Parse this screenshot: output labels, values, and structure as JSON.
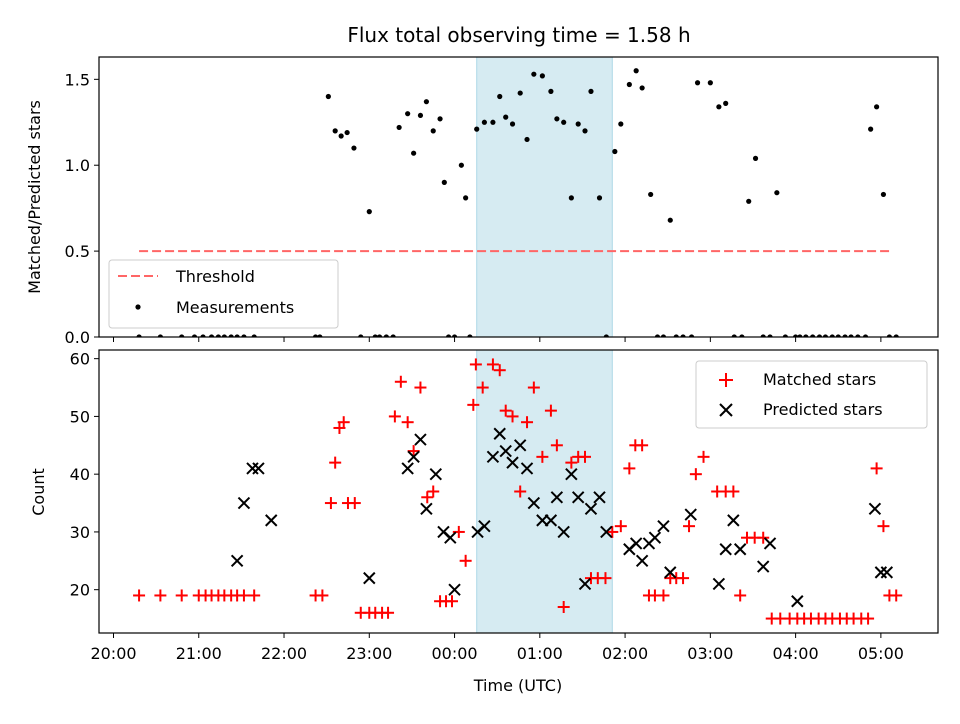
{
  "chart_data": {
    "type": "scatter",
    "title": "Flux total observing time = 1.58 h",
    "xlabel": "Time (UTC)",
    "x_unit": "hours since 00:00 UTC",
    "x_ticks": [
      {
        "value": -4,
        "label": "20:00"
      },
      {
        "value": -3,
        "label": "21:00"
      },
      {
        "value": -2,
        "label": "22:00"
      },
      {
        "value": -1,
        "label": "23:00"
      },
      {
        "value": 0,
        "label": "00:00"
      },
      {
        "value": 1,
        "label": "01:00"
      },
      {
        "value": 2,
        "label": "02:00"
      },
      {
        "value": 3,
        "label": "03:00"
      },
      {
        "value": 4,
        "label": "04:00"
      },
      {
        "value": 5,
        "label": "05:00"
      }
    ],
    "xlim": [
      -4.17,
      5.67
    ],
    "highlight_span": {
      "x0": 0.26,
      "x1": 1.85,
      "color": "#add8e6"
    },
    "top_panel": {
      "ylabel": "Matched/Predicted stars",
      "ylim": [
        0,
        1.63
      ],
      "y_ticks": [
        "0.0",
        "0.5",
        "1.0",
        "1.5"
      ],
      "threshold": {
        "value": 0.5,
        "x0": -3.7,
        "x1": 5.1,
        "name": "Threshold",
        "color": "#ff6666"
      },
      "measurements": {
        "name": "Measurements",
        "color": "#000000",
        "x": [
          -3.7,
          -3.45,
          -3.2,
          -3.05,
          -2.95,
          -2.85,
          -2.77,
          -2.7,
          -2.62,
          -2.55,
          -2.47,
          -2.35,
          -1.63,
          -1.58,
          -1.48,
          -1.4,
          -1.33,
          -1.26,
          -1.18,
          -1.1,
          -1.0,
          -0.93,
          -0.88,
          -0.8,
          -0.72,
          -0.65,
          -0.55,
          -0.48,
          -0.4,
          -0.33,
          -0.25,
          -0.17,
          -0.12,
          -0.07,
          0.0,
          0.08,
          0.13,
          0.18,
          0.26,
          0.35,
          0.45,
          0.53,
          0.6,
          0.68,
          0.77,
          0.85,
          0.93,
          1.03,
          1.13,
          1.2,
          1.28,
          1.37,
          1.45,
          1.53,
          1.6,
          1.7,
          1.78,
          1.88,
          1.95,
          2.05,
          2.13,
          2.2,
          2.3,
          2.38,
          2.45,
          2.53,
          2.6,
          2.68,
          2.78,
          2.85,
          3.0,
          3.1,
          3.18,
          3.28,
          3.37,
          3.45,
          3.53,
          3.62,
          3.7,
          3.78,
          3.88,
          4.0,
          4.05,
          4.12,
          4.2,
          4.28,
          4.35,
          4.43,
          4.5,
          4.58,
          4.65,
          4.73,
          4.82,
          4.88,
          4.95,
          5.03,
          5.1,
          5.18
        ],
        "y": [
          0,
          0,
          0,
          0,
          0,
          0,
          0,
          0,
          0,
          0,
          0,
          0,
          0,
          0,
          1.4,
          1.2,
          1.17,
          1.19,
          1.1,
          0,
          0.73,
          0,
          0,
          0,
          0,
          1.22,
          1.3,
          1.07,
          1.29,
          1.37,
          1.2,
          1.27,
          0.9,
          0,
          0,
          1.0,
          0.81,
          0,
          1.21,
          1.25,
          1.25,
          1.4,
          1.28,
          1.24,
          1.42,
          1.15,
          1.53,
          1.52,
          1.43,
          1.27,
          1.25,
          0.81,
          1.24,
          1.2,
          1.43,
          0.81,
          0,
          1.08,
          1.24,
          1.47,
          1.55,
          1.45,
          0.83,
          0,
          0,
          0.68,
          0,
          0,
          0,
          1.48,
          1.48,
          1.34,
          1.36,
          0,
          0,
          0.79,
          1.04,
          0,
          0,
          0.84,
          0,
          0,
          0,
          0,
          0,
          0,
          0,
          0,
          0,
          0,
          0,
          0,
          0,
          1.21,
          1.34,
          0.83,
          0,
          0
        ]
      }
    },
    "bottom_panel": {
      "ylabel": "Count",
      "ylim": [
        12.5,
        61.5
      ],
      "y_ticks": [
        "20",
        "30",
        "40",
        "50",
        "60"
      ],
      "series": [
        {
          "name": "Matched stars",
          "marker": "+",
          "color": "#ff0000",
          "x": [
            -3.7,
            -3.45,
            -3.2,
            -3.0,
            -2.92,
            -2.85,
            -2.77,
            -2.7,
            -2.62,
            -2.55,
            -2.47,
            -2.35,
            -1.63,
            -1.55,
            -1.45,
            -1.4,
            -1.35,
            -1.3,
            -1.25,
            -1.17,
            -1.1,
            -1.0,
            -0.93,
            -0.85,
            -0.78,
            -0.7,
            -0.63,
            -0.55,
            -0.48,
            -0.4,
            -0.32,
            -0.25,
            -0.17,
            -0.1,
            -0.03,
            0.05,
            0.13,
            0.22,
            0.25,
            0.33,
            0.45,
            0.53,
            0.6,
            0.68,
            0.77,
            0.85,
            0.93,
            1.03,
            1.13,
            1.2,
            1.28,
            1.37,
            1.45,
            1.53,
            1.6,
            1.68,
            1.77,
            1.85,
            1.95,
            2.05,
            2.12,
            2.2,
            2.28,
            2.35,
            2.45,
            2.53,
            2.6,
            2.68,
            2.75,
            2.83,
            2.92,
            3.08,
            3.18,
            3.27,
            3.35,
            3.43,
            3.52,
            3.62,
            3.72,
            3.82,
            3.93,
            4.02,
            4.1,
            4.18,
            4.27,
            4.35,
            4.43,
            4.52,
            4.6,
            4.68,
            4.77,
            4.85,
            4.95,
            5.03,
            5.1,
            5.18
          ],
          "y": [
            19,
            19,
            19,
            19,
            19,
            19,
            19,
            19,
            19,
            19,
            19,
            19,
            19,
            19,
            35,
            42,
            48,
            49,
            35,
            35,
            16,
            16,
            16,
            16,
            16,
            50,
            56,
            49,
            44,
            55,
            36,
            37,
            18,
            18,
            18,
            30,
            25,
            52,
            59,
            55,
            59,
            58,
            51,
            50,
            37,
            49,
            55,
            43,
            51,
            45,
            17,
            42,
            43,
            43,
            22,
            22,
            22,
            30,
            31,
            41,
            45,
            45,
            19,
            19,
            19,
            22,
            22,
            22,
            31,
            40,
            43,
            37,
            37,
            37,
            19,
            29,
            29,
            29,
            15,
            15,
            15,
            15,
            15,
            15,
            15,
            15,
            15,
            15,
            15,
            15,
            15,
            15,
            41,
            31,
            19,
            19
          ]
        },
        {
          "name": "Predicted stars",
          "marker": "x",
          "color": "#000000",
          "x": [
            -2.55,
            -2.47,
            -2.37,
            -2.3,
            -2.15,
            -1.0,
            -0.55,
            -0.48,
            -0.4,
            -0.33,
            -0.22,
            -0.13,
            -0.05,
            0.0,
            0.27,
            0.35,
            0.45,
            0.53,
            0.6,
            0.68,
            0.77,
            0.85,
            0.93,
            1.03,
            1.13,
            1.2,
            1.28,
            1.37,
            1.45,
            1.53,
            1.6,
            1.7,
            1.78,
            2.05,
            2.13,
            2.2,
            2.28,
            2.35,
            2.45,
            2.53,
            2.77,
            3.1,
            3.18,
            3.27,
            3.35,
            3.62,
            3.7,
            4.02,
            4.93,
            5.0,
            5.07
          ],
          "y": [
            25,
            35,
            41,
            41,
            32,
            22,
            41,
            43,
            46,
            34,
            40,
            30,
            29,
            20,
            30,
            31,
            43,
            47,
            44,
            42,
            45,
            41,
            35,
            32,
            32,
            36,
            30,
            40,
            36,
            21,
            34,
            36,
            30,
            27,
            28,
            25,
            28,
            29,
            31,
            23,
            33,
            21,
            27,
            32,
            27,
            24,
            28,
            18,
            34,
            23,
            23
          ]
        }
      ]
    },
    "legend_top": {
      "placement": "lower left",
      "entries": [
        "Threshold",
        "Measurements"
      ]
    },
    "legend_bottom": {
      "placement": "upper right",
      "entries": [
        "Matched stars",
        "Predicted stars"
      ]
    }
  }
}
